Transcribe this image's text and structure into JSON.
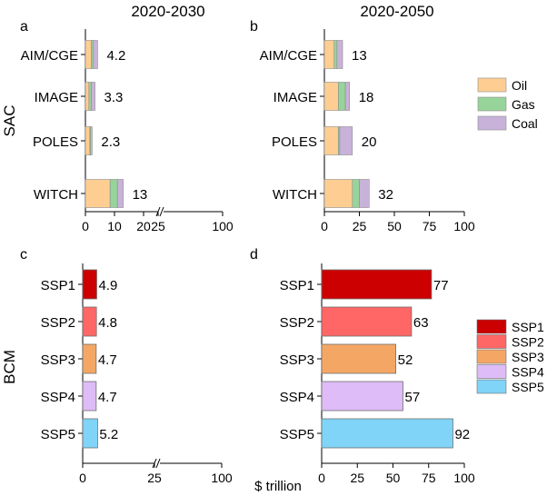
{
  "figure": {
    "col_titles": [
      "2020-2030",
      "2020-2050"
    ],
    "row_labels": [
      "SAC",
      "BCM"
    ],
    "shared_xlabel": "$ trillion"
  },
  "legend_sac": {
    "entries": [
      {
        "label": "Oil",
        "color": "#fdcd92"
      },
      {
        "label": "Gas",
        "color": "#97d49a"
      },
      {
        "label": "Coal",
        "color": "#c9b2d9"
      }
    ]
  },
  "legend_bcm": {
    "entries": [
      {
        "label": "SSP1",
        "color": "#cc0000"
      },
      {
        "label": "SSP2",
        "color": "#ff6666"
      },
      {
        "label": "SSP3",
        "color": "#f4a765"
      },
      {
        "label": "SSP4",
        "color": "#ddbcf7"
      },
      {
        "label": "SSP5",
        "color": "#7fd4f7"
      }
    ]
  },
  "chart_data": [
    {
      "panel": "a",
      "type": "bar",
      "orientation": "horizontal",
      "stacked": true,
      "title": "2020-2030",
      "categories": [
        "AIM/CGE",
        "IMAGE",
        "POLES",
        "WITCH"
      ],
      "series": [
        {
          "name": "Oil",
          "values": [
            2.0,
            1.2,
            1.5,
            8.5
          ]
        },
        {
          "name": "Gas",
          "values": [
            0.6,
            0.8,
            0.3,
            2.5
          ]
        },
        {
          "name": "Coal",
          "values": [
            1.6,
            1.3,
            0.5,
            2.0
          ]
        }
      ],
      "totals": [
        "4.2",
        "3.3",
        "2.3",
        "13"
      ],
      "axis_break": true,
      "xticks": [
        "0",
        "10",
        "20",
        "25",
        "100"
      ],
      "xlim": [
        0,
        100
      ]
    },
    {
      "panel": "b",
      "type": "bar",
      "orientation": "horizontal",
      "stacked": true,
      "title": "2020-2050",
      "categories": [
        "AIM/CGE",
        "IMAGE",
        "POLES",
        "WITCH"
      ],
      "series": [
        {
          "name": "Oil",
          "values": [
            7,
            10,
            10,
            20
          ]
        },
        {
          "name": "Gas",
          "values": [
            2,
            5,
            1,
            5
          ]
        },
        {
          "name": "Coal",
          "values": [
            4,
            3,
            9,
            7
          ]
        }
      ],
      "totals": [
        "13",
        "18",
        "20",
        "32"
      ],
      "xticks": [
        "0",
        "25",
        "50",
        "75",
        "100"
      ],
      "xlim": [
        0,
        100
      ]
    },
    {
      "panel": "c",
      "type": "bar",
      "orientation": "horizontal",
      "categories": [
        "SSP1",
        "SSP2",
        "SSP3",
        "SSP4",
        "SSP5"
      ],
      "values": [
        4.9,
        4.8,
        4.7,
        4.7,
        5.2
      ],
      "labels": [
        "4.9",
        "4.8",
        "4.7",
        "4.7",
        "5.2"
      ],
      "axis_break": true,
      "xticks": [
        "0",
        "25",
        "100"
      ],
      "xlim": [
        0,
        100
      ]
    },
    {
      "panel": "d",
      "type": "bar",
      "orientation": "horizontal",
      "categories": [
        "SSP1",
        "SSP2",
        "SSP3",
        "SSP4",
        "SSP5"
      ],
      "values": [
        77,
        63,
        52,
        57,
        92
      ],
      "labels": [
        "77",
        "63",
        "52",
        "57",
        "92"
      ],
      "xticks": [
        "0",
        "25",
        "50",
        "75",
        "100"
      ],
      "xlim": [
        0,
        100
      ]
    }
  ]
}
